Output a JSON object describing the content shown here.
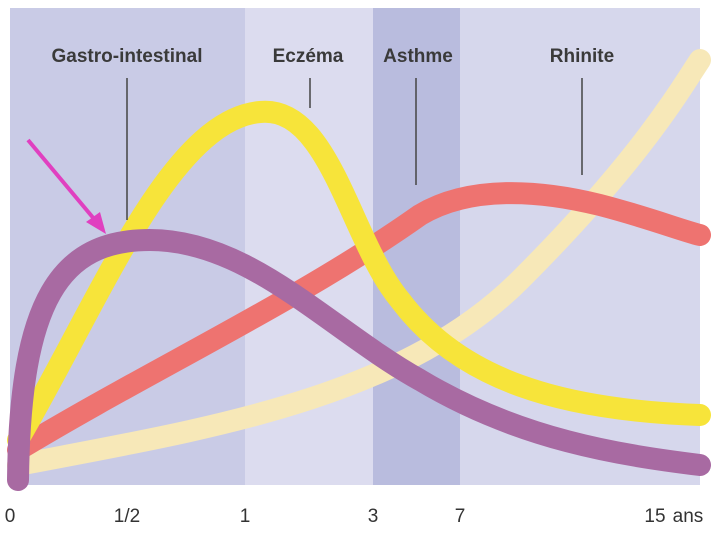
{
  "chart_data": {
    "type": "line",
    "categories": [
      "0",
      "1/2",
      "1",
      "3",
      "7",
      "15",
      "ans"
    ],
    "annotations": [
      "Gastro-intestinal",
      "Eczéma",
      "Asthme",
      "Rhinite"
    ]
  }
}
